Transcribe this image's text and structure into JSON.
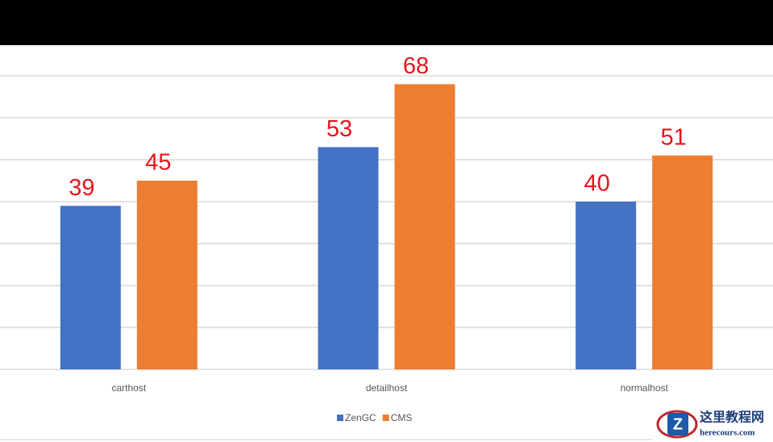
{
  "chart_data": {
    "type": "bar",
    "categories": [
      "carthost",
      "detailhost",
      "normalhost"
    ],
    "series": [
      {
        "name": "ZenGC",
        "color": "#4472c4",
        "values": [
          39,
          53,
          40
        ]
      },
      {
        "name": "CMS",
        "color": "#ed7d31",
        "values": [
          45,
          68,
          51
        ]
      }
    ],
    "ylim": [
      0,
      70
    ],
    "yticks": [
      0,
      10,
      20,
      30,
      40,
      50,
      60,
      70
    ],
    "grid": true,
    "legend": "bottom",
    "value_label_color": "#e8141c"
  },
  "watermark": {
    "title": "这里教程网",
    "url": "herecours.com"
  }
}
